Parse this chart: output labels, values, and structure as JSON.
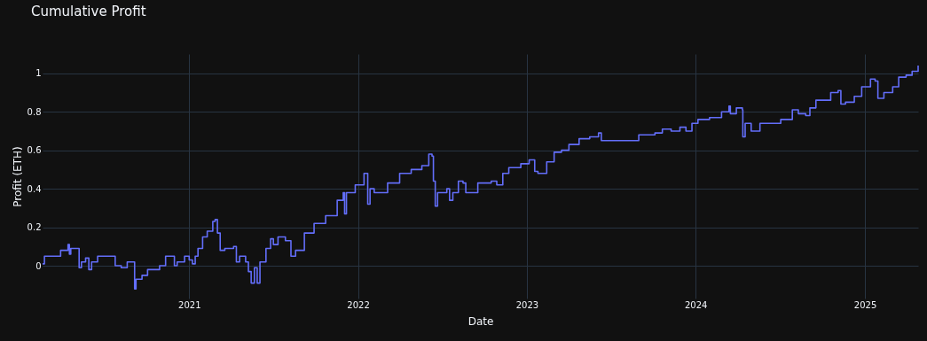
{
  "chart_data": {
    "type": "step",
    "title": "Cumulative Profit",
    "xlabel": "Date",
    "ylabel": "Profit (ETH)",
    "x": [
      "2020-02-19",
      "2020-02-23",
      "2020-03-26",
      "2020-03-29",
      "2020-04-11",
      "2020-04-14",
      "2020-04-17",
      "2020-04-20",
      "2020-05-06",
      "2020-05-08",
      "2020-05-13",
      "2020-05-22",
      "2020-05-29",
      "2020-06-04",
      "2020-06-17",
      "2020-07-22",
      "2020-07-25",
      "2020-08-07",
      "2020-08-20",
      "2020-08-26",
      "2020-09-05",
      "2020-09-08",
      "2020-09-21",
      "2020-10-03",
      "2020-10-29",
      "2020-11-11",
      "2020-11-20",
      "2020-11-30",
      "2020-12-06",
      "2020-12-22",
      "2021-01-01",
      "2021-01-08",
      "2021-01-14",
      "2021-01-20",
      "2021-01-30",
      "2021-02-09",
      "2021-02-21",
      "2021-02-26",
      "2021-03-03",
      "2021-03-09",
      "2021-03-19",
      "2021-04-07",
      "2021-04-13",
      "2021-04-20",
      "2021-05-03",
      "2021-05-09",
      "2021-05-15",
      "2021-05-22",
      "2021-05-28",
      "2021-06-03",
      "2021-06-16",
      "2021-06-26",
      "2021-07-02",
      "2021-07-12",
      "2021-07-21",
      "2021-07-28",
      "2021-08-09",
      "2021-08-19",
      "2021-09-07",
      "2021-09-28",
      "2021-10-23",
      "2021-11-17",
      "2021-11-30",
      "2021-12-03",
      "2021-12-07",
      "2021-12-26",
      "2022-01-14",
      "2022-01-20",
      "2022-01-22",
      "2022-01-27",
      "2022-02-05",
      "2022-02-25",
      "2022-03-06",
      "2022-04-01",
      "2022-04-26",
      "2022-05-19",
      "2022-06-03",
      "2022-06-10",
      "2022-06-13",
      "2022-06-17",
      "2022-06-22",
      "2022-07-12",
      "2022-07-18",
      "2022-07-25",
      "2022-08-06",
      "2022-08-16",
      "2022-08-22",
      "2022-08-29",
      "2022-09-17",
      "2022-10-16",
      "2022-10-28",
      "2022-11-10",
      "2022-11-23",
      "2022-12-19",
      "2023-01-06",
      "2023-01-12",
      "2023-01-18",
      "2023-01-25",
      "2023-02-13",
      "2023-03-01",
      "2023-03-17",
      "2023-04-02",
      "2023-04-24",
      "2023-05-17",
      "2023-06-05",
      "2023-06-11",
      "2023-07-17",
      "2023-08-18",
      "2023-08-31",
      "2023-10-05",
      "2023-10-21",
      "2023-11-09",
      "2023-11-28",
      "2023-12-11",
      "2023-12-24",
      "2024-01-06",
      "2024-01-31",
      "2024-02-26",
      "2024-03-13",
      "2024-03-16",
      "2024-03-29",
      "2024-04-11",
      "2024-04-12",
      "2024-04-17",
      "2024-04-30",
      "2024-05-19",
      "2024-06-17",
      "2024-07-03",
      "2024-07-28",
      "2024-08-10",
      "2024-08-26",
      "2024-09-04",
      "2024-09-17",
      "2024-10-19",
      "2024-11-04",
      "2024-11-10",
      "2024-11-20",
      "2024-12-09",
      "2024-12-25",
      "2025-01-13",
      "2025-01-23",
      "2025-01-29",
      "2025-02-05",
      "2025-02-11",
      "2025-03-02",
      "2025-03-15",
      "2025-03-31",
      "2025-04-13",
      "2025-04-26"
    ],
    "series": [
      {
        "color": "#636efa",
        "values": [
          0.01,
          0.05,
          0.05,
          0.08,
          0.08,
          0.11,
          0.06,
          0.09,
          0.09,
          -0.01,
          0.02,
          0.04,
          -0.02,
          0.02,
          0.05,
          0.05,
          0,
          -0.01,
          0.02,
          0.02,
          -0.12,
          -0.07,
          -0.05,
          -0.02,
          0,
          0.05,
          0.05,
          0,
          0.02,
          0.05,
          0.03,
          0.01,
          0.05,
          0.09,
          0.15,
          0.18,
          0.23,
          0.24,
          0.17,
          0.08,
          0.09,
          0.1,
          0.02,
          0.05,
          0.02,
          -0.03,
          -0.09,
          -0.01,
          -0.09,
          0.02,
          0.09,
          0.14,
          0.11,
          0.15,
          0.15,
          0.13,
          0.05,
          0.08,
          0.17,
          0.22,
          0.26,
          0.34,
          0.38,
          0.27,
          0.38,
          0.42,
          0.48,
          0.48,
          0.32,
          0.4,
          0.38,
          0.38,
          0.43,
          0.48,
          0.5,
          0.52,
          0.58,
          0.57,
          0.44,
          0.31,
          0.38,
          0.4,
          0.34,
          0.38,
          0.44,
          0.43,
          0.38,
          0.38,
          0.43,
          0.44,
          0.42,
          0.48,
          0.51,
          0.53,
          0.55,
          0.55,
          0.49,
          0.48,
          0.54,
          0.59,
          0.6,
          0.63,
          0.66,
          0.67,
          0.69,
          0.65,
          0.65,
          0.65,
          0.68,
          0.69,
          0.71,
          0.7,
          0.72,
          0.7,
          0.74,
          0.76,
          0.77,
          0.8,
          0.83,
          0.79,
          0.82,
          0.81,
          0.67,
          0.74,
          0.7,
          0.74,
          0.74,
          0.76,
          0.81,
          0.79,
          0.78,
          0.82,
          0.86,
          0.9,
          0.91,
          0.84,
          0.85,
          0.88,
          0.93,
          0.97,
          0.96,
          0.87,
          0.87,
          0.9,
          0.93,
          0.98,
          0.99,
          1.01,
          1.04
        ]
      }
    ],
    "xlim": [
      "2020-02-19",
      "2025-04-26"
    ],
    "xticks": [
      "2021",
      "2022",
      "2023",
      "2024",
      "2025"
    ],
    "ylim": [
      -0.17,
      1.1
    ],
    "yticks": [
      0,
      0.2,
      0.4,
      0.6,
      0.8,
      1
    ],
    "grid": true
  }
}
